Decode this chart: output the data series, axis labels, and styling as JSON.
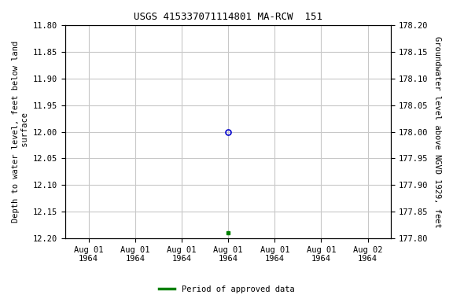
{
  "title": "USGS 415337071114801 MA-RCW  151",
  "left_ylabel": "Depth to water level, feet below land\n surface",
  "right_ylabel": "Groundwater level above NGVD 1929, feet",
  "ylim_left": [
    11.8,
    12.2
  ],
  "ylim_right": [
    177.8,
    178.2
  ],
  "yticks_left": [
    11.8,
    11.85,
    11.9,
    11.95,
    12.0,
    12.05,
    12.1,
    12.15,
    12.2
  ],
  "yticks_right": [
    177.8,
    177.85,
    177.9,
    177.95,
    178.0,
    178.05,
    178.1,
    178.15,
    178.2
  ],
  "data_point_y_depth": 12.0,
  "data_point_color": "#0000cc",
  "approved_point_y_depth": 12.19,
  "approved_color": "#008000",
  "legend_label": "Period of approved data",
  "background_color": "#ffffff",
  "grid_color": "#c8c8c8",
  "axis_label_color": "#000000",
  "font_family": "monospace",
  "title_fontsize": 9,
  "label_fontsize": 7.5,
  "tick_fontsize": 7.5,
  "x_tick_hours": [
    0,
    4,
    8,
    12,
    16,
    20,
    24
  ],
  "x_tick_labels": [
    "Aug 01\n1964",
    "Aug 01\n1964",
    "Aug 01\n1964",
    "Aug 01\n1964",
    "Aug 01\n1964",
    "Aug 01\n1964",
    "Aug 02\n1964"
  ],
  "data_x_hours": 12,
  "approved_x_hours": 12
}
